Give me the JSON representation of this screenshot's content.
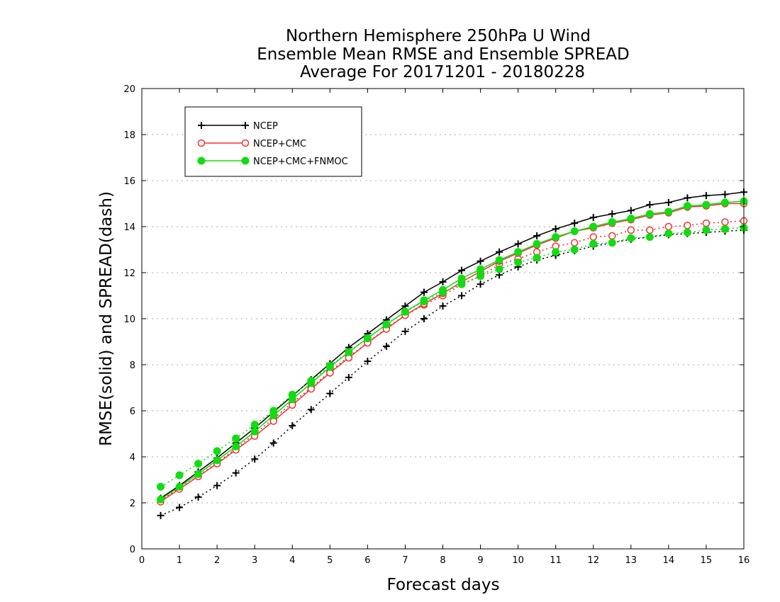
{
  "chart_data": {
    "type": "line",
    "title": [
      "Northern Hemisphere 250hPa U Wind",
      "Ensemble Mean RMSE and Ensemble SPREAD",
      "Average For 20171201 - 20180228"
    ],
    "xlabel": "Forecast days",
    "ylabel": "RMSE(solid) and SPREAD(dash)",
    "xlim": [
      0,
      16
    ],
    "ylim": [
      0,
      20
    ],
    "xticks": [
      "0",
      "1",
      "2",
      "3",
      "4",
      "5",
      "6",
      "7",
      "8",
      "9",
      "10",
      "11",
      "12",
      "13",
      "14",
      "15",
      "16"
    ],
    "yticks": [
      "0",
      "2",
      "4",
      "6",
      "8",
      "10",
      "12",
      "14",
      "16",
      "18",
      "20"
    ],
    "grid": "horizontal dotted",
    "legend_position": "top-left",
    "x": [
      0.5,
      1,
      1.5,
      2,
      2.5,
      3,
      3.5,
      4,
      4.5,
      5,
      5.5,
      6,
      6.5,
      7,
      7.5,
      8,
      8.5,
      9,
      9.5,
      10,
      10.5,
      11,
      11.5,
      12,
      12.5,
      13,
      13.5,
      14,
      14.5,
      15,
      15.5,
      16
    ],
    "series": [
      {
        "name": "NCEP",
        "color": "#000000",
        "marker": "plus",
        "rmse": [
          2.2,
          2.75,
          3.35,
          3.95,
          4.6,
          5.25,
          5.95,
          6.65,
          7.35,
          8.05,
          8.75,
          9.35,
          9.95,
          10.55,
          11.15,
          11.6,
          12.1,
          12.5,
          12.9,
          13.25,
          13.6,
          13.9,
          14.15,
          14.4,
          14.55,
          14.7,
          14.95,
          15.05,
          15.25,
          15.35,
          15.4,
          15.5
        ],
        "spread": [
          1.45,
          1.8,
          2.25,
          2.75,
          3.3,
          3.9,
          4.6,
          5.35,
          6.05,
          6.75,
          7.45,
          8.15,
          8.8,
          9.45,
          10.0,
          10.55,
          11.0,
          11.5,
          11.9,
          12.25,
          12.55,
          12.75,
          12.95,
          13.15,
          13.3,
          13.45,
          13.55,
          13.65,
          13.7,
          13.75,
          13.8,
          13.85
        ]
      },
      {
        "name": "NCEP+CMC",
        "color": "#ee3333",
        "marker": "open-circle",
        "rmse": [
          2.05,
          2.6,
          3.15,
          3.7,
          4.3,
          4.9,
          5.55,
          6.25,
          6.95,
          7.65,
          8.3,
          8.95,
          9.55,
          10.15,
          10.65,
          11.1,
          11.6,
          12.05,
          12.5,
          12.85,
          13.2,
          13.5,
          13.8,
          13.95,
          14.15,
          14.3,
          14.5,
          14.6,
          14.85,
          14.9,
          15.0,
          15.0
        ],
        "spread": [
          2.1,
          2.65,
          3.15,
          3.75,
          4.35,
          5.0,
          5.65,
          6.35,
          7.0,
          7.7,
          8.35,
          8.95,
          9.6,
          10.15,
          10.6,
          11.0,
          11.5,
          11.85,
          12.35,
          12.6,
          12.9,
          13.15,
          13.3,
          13.55,
          13.6,
          13.85,
          13.85,
          14.0,
          14.05,
          14.15,
          14.2,
          14.25
        ]
      },
      {
        "name": "NCEP+CMC+FNMOC",
        "color": "#11dd11",
        "marker": "filled-circle",
        "rmse": [
          2.15,
          2.7,
          3.25,
          3.85,
          4.45,
          5.1,
          5.8,
          6.5,
          7.2,
          7.9,
          8.55,
          9.15,
          9.75,
          10.3,
          10.8,
          11.25,
          11.75,
          12.15,
          12.55,
          12.9,
          13.25,
          13.55,
          13.8,
          14.0,
          14.2,
          14.35,
          14.55,
          14.65,
          14.9,
          14.95,
          15.05,
          15.1
        ],
        "spread": [
          2.7,
          3.2,
          3.7,
          4.25,
          4.8,
          5.4,
          6.0,
          6.7,
          7.3,
          7.95,
          8.55,
          9.15,
          9.75,
          10.3,
          10.75,
          11.15,
          11.5,
          11.85,
          12.15,
          12.45,
          12.65,
          12.9,
          13.0,
          13.25,
          13.3,
          13.5,
          13.55,
          13.7,
          13.75,
          13.85,
          13.9,
          13.95
        ]
      }
    ]
  }
}
